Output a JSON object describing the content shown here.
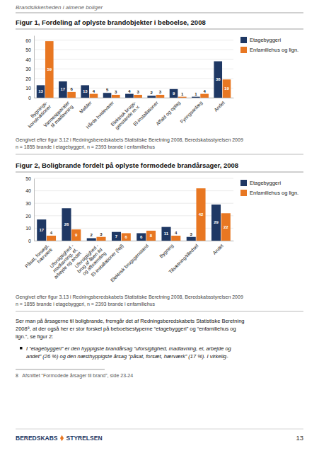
{
  "header": "Brandsikkerheden i almene boliger",
  "chart_data": [
    {
      "type": "bar",
      "title": "Figur 1, Fordeling af oplyste brandobjekter i beboelse, 2008",
      "categories": [
        "Bygnings-\nkonstruktioner",
        "Varmeapparater\ntil madlavning",
        "Møbler",
        "Hårde hvidevarer",
        "Elektrisk brugs-\ngenstande m.v.",
        "El-installationer",
        "Affald og oplag",
        "Fyringsanlæg",
        "Andet"
      ],
      "series": [
        {
          "name": "Etagebyggeri",
          "color": "#1f3864",
          "values": [
            13,
            17,
            13,
            5,
            4,
            2,
            9,
            1,
            38
          ]
        },
        {
          "name": "Enfamiliehus og lign.",
          "color": "#e87722",
          "values": [
            59,
            6,
            4,
            3,
            3,
            3,
            1,
            4,
            19
          ]
        }
      ],
      "ylim": [
        0,
        65
      ],
      "yticks": [
        0,
        10,
        20,
        30,
        40,
        50,
        60
      ],
      "grid": true,
      "legend": "upper right",
      "data_labels": true,
      "annotations": [
        "Gengivet efter figur 3.12 i Redningsberedskabets Statistiske Beretning 2008, Beredskabsstyrelsen 2009",
        "n = 1855 brande i etagebyggeri, n = 2393 brande i enfamiliehus"
      ]
    },
    {
      "type": "bar",
      "title": "Figur 2, Boligbrande fordelt på oplyste formodede brandårsager, 2008",
      "categories": [
        "Påsat, forsøgt,\nhærværk",
        "Uforsigtighed -\nmadlavning, el,\narbejde og andet",
        "Uforsigtighed -\nbrug af åben ild\nog afbrænding",
        "El-installationer (fejl)",
        "Elektrisk brugsgenstand",
        "Bygning",
        "Tilsætning/tilledsel",
        "Andet"
      ],
      "series": [
        {
          "name": "Etagebyggeri",
          "color": "#1f3864",
          "values": [
            17,
            26,
            2,
            7,
            6,
            11,
            3,
            29
          ]
        },
        {
          "name": "Enfamiliehus og lign.",
          "color": "#e87722",
          "values": [
            4,
            9,
            3,
            6,
            8,
            4,
            42,
            22
          ]
        }
      ],
      "ylim": [
        0,
        50
      ],
      "yticks": [
        0,
        10,
        20,
        30,
        40,
        50
      ],
      "grid": true,
      "legend": "upper right",
      "data_labels": true,
      "annotations": [
        "Gengivet efter figur 3.13 i Redningsberedskabets Statistiske Beretning 2008, Beredskabsstyrelsen 2009",
        "n = 1855 brande i etagebyggeri, n = 2393 brande i enfamiliehus"
      ]
    }
  ],
  "body_text": [
    "Ser man på årsagerne til boligbrande, fremgår det af Redningsberedskabets Statistiske Beretning",
    "2008⁸, at der også her er stor forskel på beboelsestyperne “etagebyggeri” og “enfamiliehus og",
    "lign.”, se figur 2:"
  ],
  "bullet_text": [
    "I “etagebyggeri” er den hyppigste brandårsag “uforsigtighed, madlavning, el, arbejde og",
    "andet” (26 %) og den næsthyppigste årsag “påsat, forsæt, hærværk” (17 %). I virkelig-"
  ],
  "footnote": "8   Afsnittet “Formodede årsager til brand”, side 23-24",
  "logo": [
    "BEREDSKABS",
    "STYRELSEN"
  ],
  "page_number": "13"
}
